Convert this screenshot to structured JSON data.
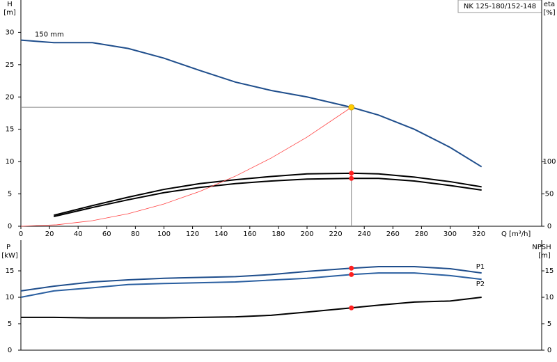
{
  "chart_data": [
    {
      "type": "line",
      "title": "NK 125-180/152-148",
      "xlabel": "Q [m³/h]",
      "ylabel": "H",
      "yunit": "[m]",
      "y2label": "eta",
      "y2unit": "[%]",
      "xlim": [
        0,
        364
      ],
      "xticks": [
        0,
        20,
        40,
        60,
        80,
        100,
        120,
        140,
        160,
        180,
        200,
        220,
        240,
        260,
        280,
        300,
        320
      ],
      "ylim": [
        0,
        35
      ],
      "yticks": [
        0,
        5,
        10,
        15,
        20,
        25,
        30
      ],
      "y2lim": [
        0,
        350
      ],
      "y2ticks": [
        0,
        50,
        100
      ],
      "marker_color": "#ff2020",
      "duty_point": {
        "x": 231,
        "y": 18.4,
        "color": "#ffcc00"
      },
      "series": [
        {
          "name": "150 mm",
          "color": "#1f4e8c",
          "x": [
            0,
            23,
            50,
            75,
            100,
            125,
            150,
            175,
            200,
            231,
            250,
            275,
            300,
            322
          ],
          "values": [
            28.8,
            28.4,
            28.4,
            27.5,
            26,
            24.1,
            22.3,
            21,
            20,
            18.4,
            17.2,
            15,
            12.2,
            9.2
          ]
        },
        {
          "color": "#000000",
          "axis": "y2",
          "x": [
            23,
            50,
            75,
            100,
            125,
            150,
            175,
            200,
            231,
            250,
            275,
            300,
            322
          ],
          "values": [
            17,
            32,
            45,
            57,
            66,
            72,
            77,
            81,
            82,
            81,
            76,
            69,
            61
          ]
        },
        {
          "color": "#000000",
          "axis": "y2",
          "x": [
            23,
            50,
            75,
            100,
            125,
            150,
            175,
            200,
            231,
            250,
            275,
            300,
            322
          ],
          "values": [
            15,
            29,
            41,
            52,
            60,
            66,
            70,
            73,
            74,
            74,
            70,
            63,
            56
          ]
        },
        {
          "color": "#ff4040",
          "x": [
            0,
            25,
            50,
            75,
            100,
            125,
            150,
            175,
            200,
            231
          ],
          "values": [
            0,
            0.22,
            0.86,
            1.94,
            3.45,
            5.39,
            7.76,
            10.56,
            13.79,
            18.4
          ]
        }
      ]
    },
    {
      "type": "line",
      "ylabel": "P",
      "yunit": "[kW]",
      "y2label": "NPSH",
      "y2unit": "[m]",
      "xlim": [
        0,
        364
      ],
      "ylim": [
        0,
        20.8
      ],
      "yticks": [
        0,
        5,
        10,
        15
      ],
      "y2lim": [
        0,
        20.8
      ],
      "y2ticks": [
        0,
        5,
        10,
        15
      ],
      "marker_color": "#ff2020",
      "series": [
        {
          "name": "P1",
          "color": "#1f4e8c",
          "x": [
            0,
            23,
            50,
            75,
            100,
            150,
            175,
            200,
            231,
            250,
            275,
            300,
            322
          ],
          "values": [
            11.2,
            12.1,
            12.9,
            13.3,
            13.6,
            13.9,
            14.3,
            14.9,
            15.5,
            15.8,
            15.8,
            15.4,
            14.6
          ]
        },
        {
          "name": "P2",
          "color": "#2a5fa0",
          "x": [
            0,
            23,
            50,
            75,
            100,
            150,
            200,
            231,
            250,
            275,
            300,
            322
          ],
          "values": [
            10,
            11.2,
            11.8,
            12.4,
            12.6,
            12.9,
            13.6,
            14.3,
            14.6,
            14.6,
            14.1,
            13.4
          ]
        },
        {
          "color": "#000000",
          "axis": "y2",
          "x": [
            0,
            23,
            50,
            100,
            150,
            175,
            200,
            231,
            250,
            275,
            300,
            322
          ],
          "values": [
            6.2,
            6.2,
            6.1,
            6.1,
            6.3,
            6.6,
            7.2,
            8.0,
            8.5,
            9.1,
            9.3,
            10.0
          ]
        }
      ]
    }
  ]
}
